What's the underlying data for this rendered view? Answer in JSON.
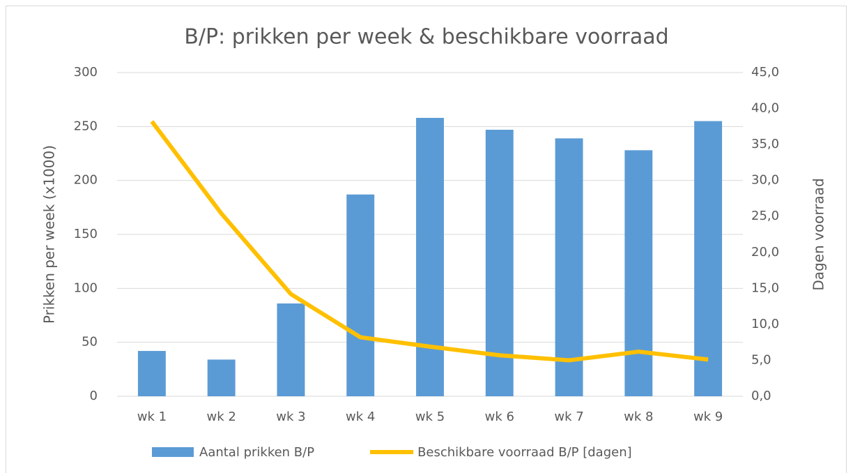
{
  "chart_data": {
    "type": "bar",
    "title": "B/P: prikken per week & beschikbare voorraad",
    "y_label": "Prikken per week (x1000)",
    "y2_label": "Dagen voorraad",
    "categories": [
      "wk 1",
      "wk 2",
      "wk 3",
      "wk 4",
      "wk 5",
      "wk 6",
      "wk 7",
      "wk 8",
      "wk 9"
    ],
    "series": [
      {
        "name": "Aantal prikken B/P",
        "type": "bar",
        "color": "#5b9bd5",
        "values": [
          42,
          34,
          86,
          187,
          258,
          247,
          239,
          228,
          255
        ]
      },
      {
        "name": "Beschikbare voorraad B/P [dagen]",
        "type": "line",
        "axis": "y2",
        "color": "#ffc000",
        "values": [
          38.2,
          25.4,
          14.2,
          8.2,
          6.9,
          5.7,
          5.0,
          6.2,
          5.1
        ]
      }
    ],
    "ylim": [
      0,
      300
    ],
    "yticks": [
      0,
      50,
      100,
      150,
      200,
      250,
      300
    ],
    "y2lim": [
      0,
      45
    ],
    "y2ticks": [
      {
        "value": 0,
        "label": "0,0"
      },
      {
        "value": 5,
        "label": "5,0"
      },
      {
        "value": 10,
        "label": "10,0"
      },
      {
        "value": 15,
        "label": "15,0"
      },
      {
        "value": 20,
        "label": "20,0"
      },
      {
        "value": 25,
        "label": "25,0"
      },
      {
        "value": 30,
        "label": "30,0"
      },
      {
        "value": 35,
        "label": "35,0"
      },
      {
        "value": 40,
        "label": "40,0"
      },
      {
        "value": 45,
        "label": "45,0"
      }
    ],
    "grid": true,
    "legend": "bottom"
  }
}
